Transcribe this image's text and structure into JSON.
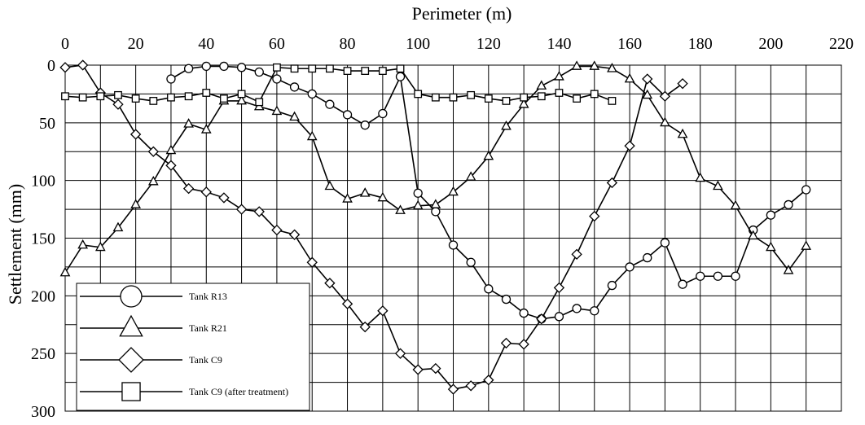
{
  "chart_data": {
    "type": "line",
    "xlabel": "Perimeter (m)",
    "ylabel": "Settlement (mm)",
    "xlim": [
      0,
      220
    ],
    "ylim": [
      0,
      300
    ],
    "y_inverted": true,
    "x_axis_position": "top",
    "grid": true,
    "legend_position": "bottom-left",
    "xticks": [
      0,
      20,
      40,
      60,
      80,
      100,
      120,
      140,
      160,
      180,
      200,
      220
    ],
    "yticks": [
      0,
      50,
      100,
      150,
      200,
      250,
      300
    ],
    "series": [
      {
        "name": "Tank  R13",
        "marker": "circle",
        "x": [
          30,
          35,
          40,
          45,
          50,
          55,
          60,
          65,
          70,
          75,
          80,
          85,
          90,
          95,
          100,
          105,
          110,
          115,
          120,
          125,
          130,
          135,
          140,
          145,
          150,
          155,
          160,
          165,
          170,
          175,
          180,
          185,
          190,
          195,
          200,
          205,
          210
        ],
        "y": [
          12,
          3,
          1,
          1,
          2,
          6,
          12,
          19,
          25,
          34,
          43,
          52,
          42,
          10,
          111,
          127,
          156,
          171,
          194,
          203,
          215,
          220,
          218,
          211,
          213,
          191,
          175,
          167,
          154,
          190,
          183,
          183,
          183,
          143,
          130,
          121,
          108
        ]
      },
      {
        "name": "Tank R21",
        "marker": "triangle",
        "x": [
          0,
          5,
          10,
          15,
          20,
          25,
          30,
          35,
          40,
          45,
          50,
          55,
          60,
          65,
          70,
          75,
          80,
          85,
          90,
          95,
          100,
          105,
          110,
          115,
          120,
          125,
          130,
          135,
          140,
          145,
          150,
          155,
          160,
          165,
          170,
          175,
          180,
          185,
          190,
          195,
          200,
          205,
          210
        ],
        "y": [
          180,
          156,
          158,
          141,
          121,
          101,
          74,
          51,
          56,
          31,
          31,
          36,
          40,
          45,
          62,
          105,
          116,
          111,
          115,
          126,
          122,
          121,
          110,
          97,
          79,
          53,
          34,
          18,
          10,
          1,
          1,
          3,
          12,
          26,
          50,
          60,
          98,
          105,
          122,
          148,
          158,
          178,
          157
        ]
      },
      {
        "name": "Tank C9",
        "marker": "diamond",
        "x": [
          0,
          5,
          10,
          15,
          20,
          25,
          30,
          35,
          40,
          45,
          50,
          55,
          60,
          65,
          70,
          75,
          80,
          85,
          90,
          95,
          100,
          105,
          110,
          115,
          120,
          125,
          130,
          135,
          140,
          145,
          150,
          155,
          160,
          165,
          170,
          175
        ],
        "y": [
          2,
          0,
          24,
          34,
          60,
          75,
          87,
          107,
          110,
          115,
          125,
          127,
          143,
          147,
          171,
          189,
          207,
          227,
          213,
          250,
          264,
          263,
          281,
          278,
          273,
          241,
          242,
          220,
          193,
          164,
          131,
          102,
          70,
          12,
          27,
          16
        ]
      },
      {
        "name": "Tank C9 (after treatment)",
        "marker": "square",
        "x": [
          0,
          5,
          10,
          15,
          20,
          25,
          30,
          35,
          40,
          45,
          50,
          55,
          60,
          65,
          70,
          75,
          80,
          85,
          90,
          95,
          100,
          105,
          110,
          115,
          120,
          125,
          130,
          135,
          140,
          145,
          150,
          155
        ],
        "y": [
          27,
          28,
          27,
          26,
          29,
          31,
          28,
          27,
          24,
          29,
          25,
          32,
          2,
          3,
          3,
          3,
          5,
          5,
          5,
          3,
          25,
          28,
          28,
          26,
          29,
          31,
          28,
          27,
          24,
          29,
          25,
          31
        ]
      }
    ]
  }
}
